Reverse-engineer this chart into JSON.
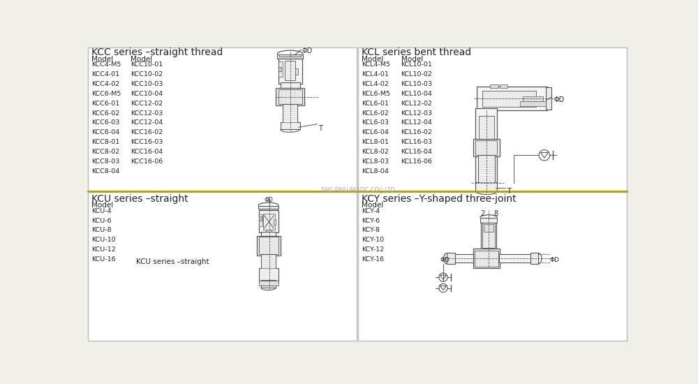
{
  "bg_color": "#f0f0e8",
  "panel_bg": "#ffffff",
  "border_color": "#bbbbbb",
  "text_color": "#222222",
  "diagram_color": "#555555",
  "light_gray": "#cccccc",
  "olive_line": "#b0a800",
  "title_fontsize": 10,
  "label_fontsize": 7.5,
  "small_fontsize": 6.8,
  "tiny_fontsize": 6,
  "watermark": "SNS PNEUMATIC CO。 LTD",
  "sections": [
    {
      "title": "KCC series –straight thread",
      "col1": [
        "KCC4-M5",
        "KCC4-01",
        "KCC4-02",
        "KCC6-M5",
        "KCC6-01",
        "KCC6-02",
        "KCC6-03",
        "KCC6-04",
        "KCC8-01",
        "KCC8-02",
        "KCC8-03",
        "KCC8-04"
      ],
      "col2": [
        "KCC10-01",
        "KCC10-02",
        "KCC10-03",
        "KCC10-04",
        "KCC12-02",
        "KCC12-03",
        "KCC12-04",
        "KCC16-02",
        "KCC16-03",
        "KCC16-04",
        "KCC16-06",
        ""
      ]
    },
    {
      "title": "KCL series bent thread",
      "col1": [
        "KCL4-M5",
        "KCL4-01",
        "KCL4-02",
        "KCL6-M5",
        "KCL6-01",
        "KCL6-02",
        "KCL6-03",
        "KCL6-04",
        "KCL8-01",
        "KCL8-02",
        "KCL8-03",
        "KCL8-04"
      ],
      "col2": [
        "KCL10-01",
        "KCL10-02",
        "KCL10-03",
        "KCL10-04",
        "KCL12-02",
        "KCL12-03",
        "KCL12-04",
        "KCL16-02",
        "KCL16-03",
        "KCL16-04",
        "KCL16-06",
        ""
      ]
    },
    {
      "title": "KCU series –straight",
      "col1": [
        "KCU-4",
        "KCU-6",
        "KCU-8",
        "KCU-10",
        "KCU-12",
        "KCU-16"
      ],
      "col2": []
    },
    {
      "title": "KCY series –Y-shaped three-joint",
      "col1": [
        "KCY-4",
        "KCY-6",
        "KCY-8",
        "KCY-10",
        "KCY-12",
        "KCY-16"
      ],
      "col2": []
    }
  ]
}
